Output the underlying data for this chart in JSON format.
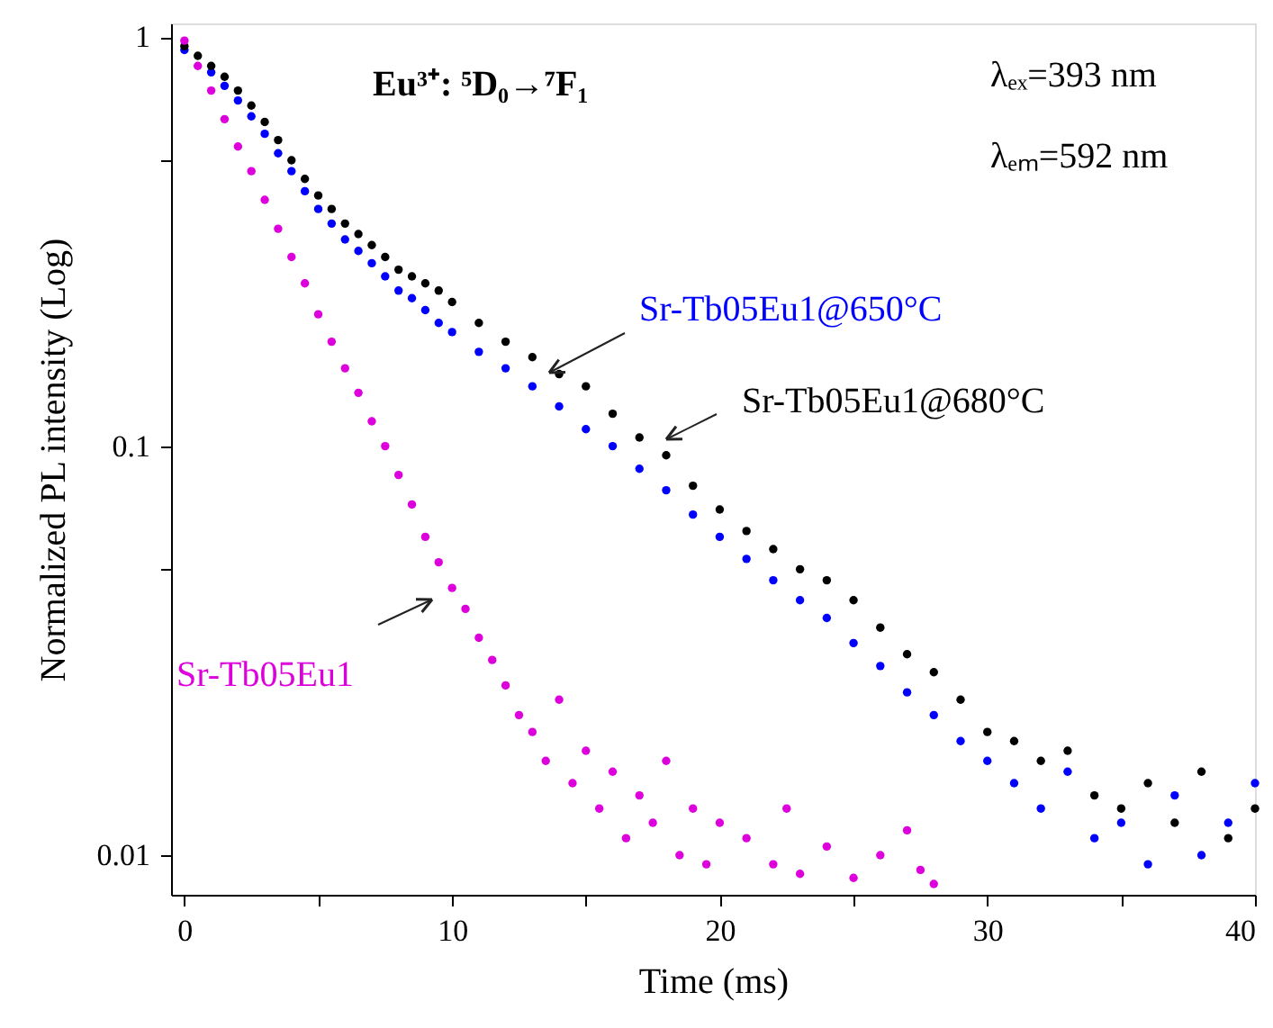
{
  "chart_data": {
    "type": "scatter",
    "xlabel": "Time (ms)",
    "ylabel": "Normalized PL intensity (Log)",
    "log": "y",
    "marker": "circle",
    "grid": false,
    "xlim": [
      -0.5,
      40
    ],
    "xticks": [
      0,
      {
        "value": 5,
        "label": null
      },
      10,
      {
        "value": 15,
        "label": null
      },
      20,
      {
        "value": 25,
        "label": null
      },
      30,
      {
        "value": 35,
        "label": null
      },
      40
    ],
    "ylim": [
      0.008,
      1.08
    ],
    "yticks": [
      1,
      {
        "value": 0.5,
        "label": null
      },
      0.1,
      {
        "value": 0.05,
        "label": null
      },
      0.01
    ],
    "annotations": [
      "Eu³⁺: ⁵D₀→⁷F₁",
      "λₑₓ=393 nm",
      "λₑₘ=592 nm"
    ],
    "series": [
      {
        "name": "Sr-Tb05Eu1@650°C",
        "color": "#0000ff",
        "x": [
          0,
          0.5,
          1,
          1.5,
          2,
          2.5,
          3,
          3.5,
          4,
          4.5,
          5,
          5.5,
          6,
          6.5,
          7,
          7.5,
          8,
          8.5,
          9,
          9.5,
          10,
          11,
          12,
          13,
          14,
          15,
          16,
          17,
          18,
          19,
          20,
          21,
          22,
          23,
          24,
          25,
          26,
          27,
          28,
          29,
          30,
          31,
          32,
          33,
          34,
          35,
          36,
          37,
          38,
          39,
          40
        ],
        "values": [
          0.93,
          null,
          0.82,
          0.76,
          0.7,
          0.64,
          0.58,
          0.52,
          0.47,
          0.42,
          0.38,
          0.35,
          0.32,
          0.3,
          0.28,
          0.26,
          0.24,
          0.23,
          0.215,
          0.2,
          0.19,
          0.17,
          0.155,
          0.14,
          0.125,
          0.11,
          0.1,
          0.088,
          0.078,
          0.068,
          0.06,
          0.053,
          0.047,
          0.042,
          0.038,
          0.033,
          0.029,
          0.025,
          0.022,
          0.019,
          0.017,
          0.015,
          0.013,
          0.016,
          0.011,
          0.012,
          0.0095,
          0.014,
          0.01,
          0.012,
          0.015
        ]
      },
      {
        "name": "Sr-Tb05Eu1@680°C",
        "color": "#000000",
        "x": [
          0,
          0.5,
          1,
          1.5,
          2,
          2.5,
          3,
          3.5,
          4,
          4.5,
          5,
          5.5,
          6,
          6.5,
          7,
          7.5,
          8,
          8.5,
          9,
          9.5,
          10,
          11,
          12,
          13,
          14,
          15,
          16,
          17,
          18,
          19,
          20,
          21,
          22,
          23,
          24,
          25,
          26,
          27,
          28,
          29,
          30,
          31,
          32,
          33,
          34,
          35,
          36,
          37,
          38,
          39,
          40
        ],
        "values": [
          0.95,
          0.9,
          0.85,
          0.8,
          0.74,
          0.68,
          0.62,
          0.56,
          0.5,
          0.45,
          0.41,
          0.38,
          0.35,
          0.33,
          0.31,
          0.29,
          0.27,
          0.26,
          0.25,
          0.24,
          0.225,
          0.2,
          0.18,
          0.165,
          0.15,
          0.14,
          0.12,
          0.105,
          0.095,
          0.08,
          0.07,
          0.062,
          0.056,
          0.05,
          0.047,
          0.042,
          0.036,
          0.031,
          0.028,
          0.024,
          0.02,
          0.019,
          0.017,
          0.018,
          0.014,
          0.013,
          0.015,
          0.012,
          0.016,
          0.011,
          0.013
        ]
      },
      {
        "name": "Sr-Tb05Eu1",
        "color": "#dd00dd",
        "x": [
          0,
          0.5,
          1,
          1.5,
          2,
          2.5,
          3,
          3.5,
          4,
          4.5,
          5,
          5.5,
          6,
          6.5,
          7,
          7.5,
          8,
          8.5,
          9,
          9.5,
          10,
          10.5,
          11,
          11.5,
          12,
          12.5,
          13,
          13.5,
          14,
          14.5,
          15,
          15.5,
          16,
          16.5,
          17,
          17.5,
          18,
          18.5,
          19,
          19.5,
          20,
          21,
          22,
          22.5,
          23,
          24,
          25,
          26,
          27,
          27.5,
          28
        ],
        "values": [
          0.98,
          0.85,
          0.74,
          0.63,
          0.54,
          0.47,
          0.4,
          0.34,
          0.29,
          0.25,
          0.21,
          0.18,
          0.155,
          0.135,
          0.115,
          0.1,
          0.085,
          0.072,
          0.06,
          0.052,
          0.045,
          0.04,
          0.034,
          0.03,
          0.026,
          0.022,
          0.02,
          0.017,
          0.024,
          0.015,
          0.018,
          0.013,
          0.016,
          0.011,
          0.014,
          0.012,
          0.017,
          0.01,
          0.013,
          0.0095,
          0.012,
          0.011,
          0.0095,
          0.013,
          0.009,
          0.0105,
          0.0088,
          0.01,
          0.0115,
          0.0092,
          0.0085
        ]
      }
    ]
  }
}
